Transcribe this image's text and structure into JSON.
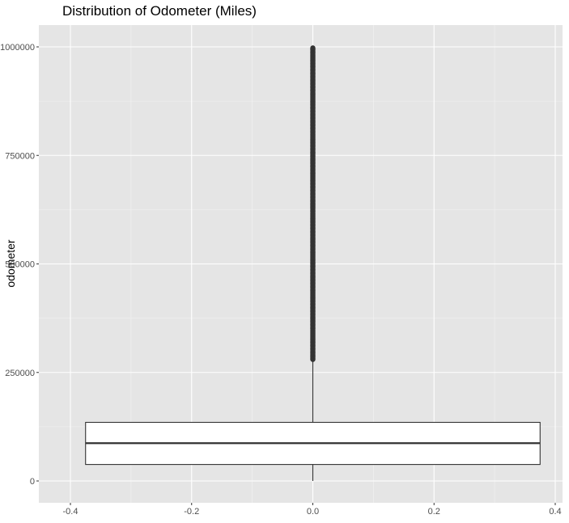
{
  "chart_data": {
    "type": "boxplot",
    "title": "Distribution of Odometer (Miles)",
    "xlabel": "",
    "ylabel": "odometer",
    "xlim": [
      -0.4,
      0.4
    ],
    "ylim": [
      0,
      1000000
    ],
    "x_ticks": [
      -0.4,
      -0.2,
      0.0,
      0.2,
      0.4
    ],
    "x_tick_labels": [
      "-0.4",
      "-0.2",
      "0.0",
      "0.2",
      "0.4"
    ],
    "y_ticks": [
      0,
      250000,
      500000,
      750000,
      1000000
    ],
    "y_tick_labels": [
      "0",
      "250000",
      "500000",
      "750000",
      "1000000"
    ],
    "grid": true,
    "background": "#e5e5e5",
    "box": {
      "x": 0.0,
      "x_range": [
        -0.375,
        0.375
      ],
      "whisker_low": 0,
      "q1": 38000,
      "median": 87000,
      "q3": 135000,
      "whisker_high": 278000,
      "outlier_range": [
        280000,
        999999
      ]
    }
  }
}
